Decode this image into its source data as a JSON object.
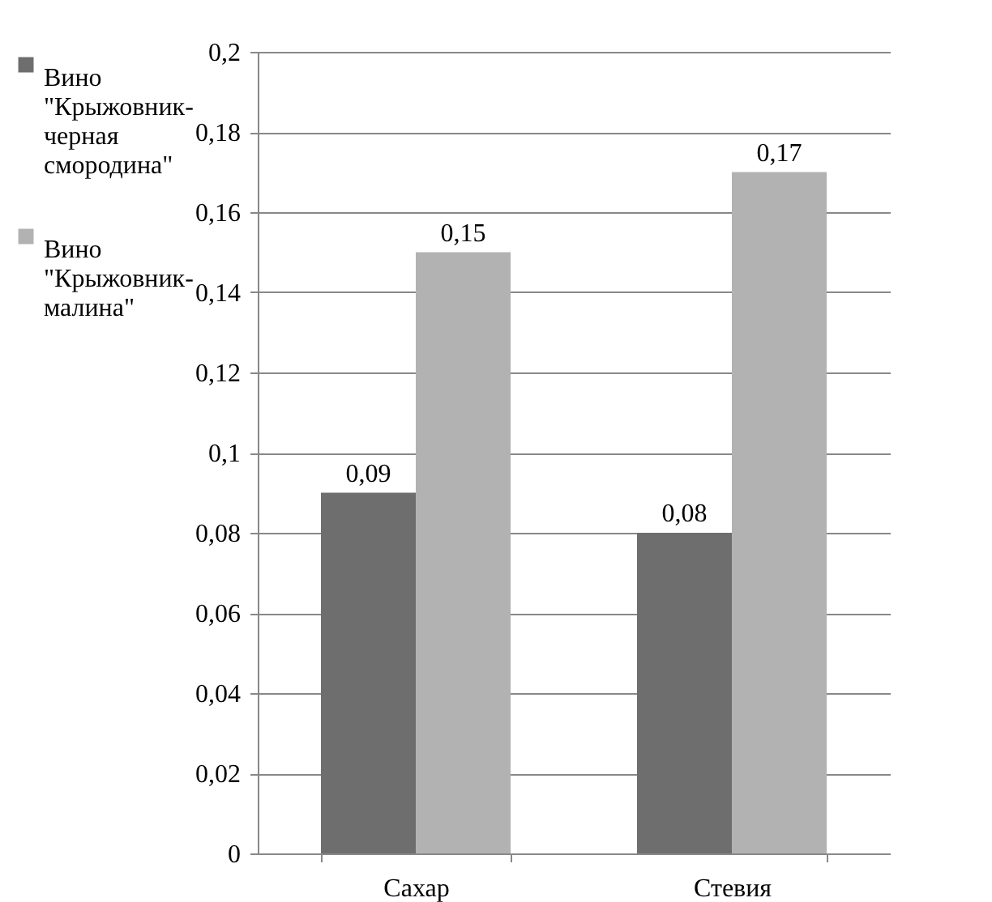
{
  "chart_data": {
    "type": "bar",
    "categories": [
      "Сахар",
      "Стевия"
    ],
    "series": [
      {
        "name": "Вино \"Крыжовник-черная смородина\"",
        "color": "#6e6e6e",
        "values": [
          0.09,
          0.08
        ],
        "value_labels": [
          "0,09",
          "0,08"
        ]
      },
      {
        "name": "Вино \"Крыжовник-малина\"",
        "color": "#b2b2b2",
        "values": [
          0.15,
          0.17
        ],
        "value_labels": [
          "0,15",
          "0,17"
        ]
      }
    ],
    "ylim": [
      0,
      0.2
    ],
    "yticks": [
      {
        "value": 0,
        "label": "0"
      },
      {
        "value": 0.02,
        "label": "0,02"
      },
      {
        "value": 0.04,
        "label": "0,04"
      },
      {
        "value": 0.06,
        "label": "0,06"
      },
      {
        "value": 0.08,
        "label": "0,08"
      },
      {
        "value": 0.1,
        "label": "0,1"
      },
      {
        "value": 0.12,
        "label": "0,12"
      },
      {
        "value": 0.14,
        "label": "0,14"
      },
      {
        "value": 0.16,
        "label": "0,16"
      },
      {
        "value": 0.18,
        "label": "0,18"
      },
      {
        "value": 0.2,
        "label": "0,2"
      }
    ],
    "grid": "y",
    "legend": "left"
  }
}
